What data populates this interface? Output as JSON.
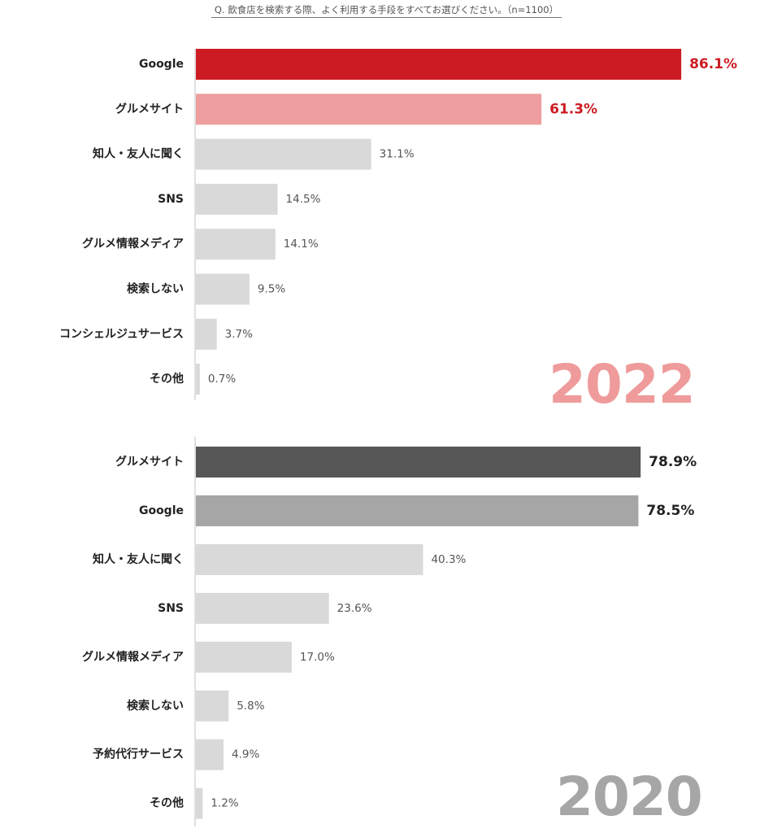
{
  "question": "Q. 飲食店を検索する際、よく利用する手段をすべてお選びください。（n=1100）",
  "colors": {
    "red": "#cc1b22",
    "pink": "#ee9e9e",
    "gray_light": "#d9d9d9",
    "gray_dark": "#575757",
    "gray_mid": "#a6a6a6",
    "axis": "#cfcfcf",
    "value_text": "#555555",
    "value_dark": "#222222",
    "year_2022": "#ef9b9b",
    "year_2020": "#a6a6a6"
  },
  "chart_data": [
    {
      "type": "bar",
      "year_label": "2022",
      "categories": [
        "Google",
        "グルメサイト",
        "知人・友人に聞く",
        "SNS",
        "グルメ情報メディア",
        "検索しない",
        "コンシェルジュサービス",
        "その他"
      ],
      "values": [
        86.1,
        61.3,
        31.1,
        14.5,
        14.1,
        9.5,
        3.7,
        0.7
      ],
      "value_labels": [
        "86.1%",
        "61.3%",
        "31.1%",
        "14.5%",
        "14.1%",
        "9.5%",
        "3.7%",
        "0.7%"
      ],
      "bar_colors": [
        "#cc1b22",
        "#ee9e9e",
        "#d9d9d9",
        "#d9d9d9",
        "#d9d9d9",
        "#d9d9d9",
        "#d9d9d9",
        "#d9d9d9"
      ],
      "label_colors": [
        "#cc1b22",
        "#cc1b22",
        "#555555",
        "#555555",
        "#555555",
        "#555555",
        "#555555",
        "#555555"
      ],
      "highlight": [
        true,
        true,
        false,
        false,
        false,
        false,
        false,
        false
      ],
      "orientation": "horizontal",
      "xlim": [
        0,
        100
      ],
      "grid": false
    },
    {
      "type": "bar",
      "year_label": "2020",
      "categories": [
        "グルメサイト",
        "Google",
        "知人・友人に聞く",
        "SNS",
        "グルメ情報メディア",
        "検索しない",
        "予約代行サービス",
        "その他"
      ],
      "values": [
        78.9,
        78.5,
        40.3,
        23.6,
        17.0,
        5.8,
        4.9,
        1.2
      ],
      "value_labels": [
        "78.9%",
        "78.5%",
        "40.3%",
        "23.6%",
        "17.0%",
        "5.8%",
        "4.9%",
        "1.2%"
      ],
      "bar_colors": [
        "#575757",
        "#a6a6a6",
        "#d9d9d9",
        "#d9d9d9",
        "#d9d9d9",
        "#d9d9d9",
        "#d9d9d9",
        "#d9d9d9"
      ],
      "label_colors": [
        "#222222",
        "#222222",
        "#555555",
        "#555555",
        "#555555",
        "#555555",
        "#555555",
        "#555555"
      ],
      "highlight": [
        true,
        true,
        false,
        false,
        false,
        false,
        false,
        false
      ],
      "orientation": "horizontal",
      "xlim": [
        0,
        100
      ],
      "grid": false
    }
  ]
}
